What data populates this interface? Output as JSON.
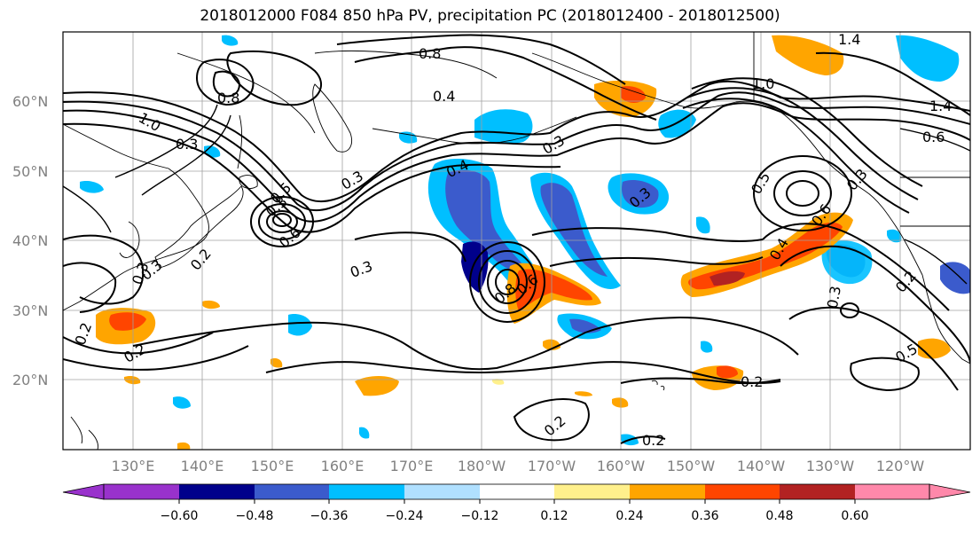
{
  "title": "2018012000 F084 850 hPa PV, precipitation PC (2018012400 - 2018012500)",
  "map": {
    "lat_labels": [
      "60°N",
      "50°N",
      "40°N",
      "30°N",
      "20°N"
    ],
    "lon_labels": [
      "130°E",
      "140°E",
      "150°E",
      "160°E",
      "170°E",
      "180°W",
      "170°W",
      "160°W",
      "150°W",
      "140°W",
      "130°W",
      "120°W"
    ],
    "contour_labels": [
      "0.8",
      "0.4",
      "1.4",
      "1.0",
      "1.4",
      "0.6",
      "0.8",
      "1.0",
      "0.3",
      "0.3",
      "0.4",
      "0.3",
      "0.5",
      "0.3",
      "0.3",
      "0.2",
      "0.3",
      "0.3",
      "0.8",
      "0.6",
      "0.6",
      "0.4",
      "0.5",
      "0.6",
      "0.3",
      "0.2",
      "0.2",
      "0.2",
      "0.2",
      "0.2",
      "0.5",
      "0.3",
      "0.2",
      "0.3"
    ]
  },
  "colorbar": {
    "tick_labels": [
      "−0.60",
      "−0.48",
      "−0.36",
      "−0.24",
      "−0.12",
      "0.12",
      "0.24",
      "0.36",
      "0.48",
      "0.60"
    ],
    "colors": [
      "#9932cc",
      "#00008b",
      "#3b5bcc",
      "#00bfff",
      "#b0e0ff",
      "#ffffff",
      "#fff08c",
      "#ffa500",
      "#ff4500",
      "#b22222",
      "#ff88aa"
    ]
  },
  "colors": {
    "neg_strong": "#00008b",
    "neg_mid": "#3b5bcc",
    "neg_weak": "#00bfff",
    "neg_faint": "#b0e0ff",
    "pos_faint": "#fff08c",
    "pos_weak": "#ffa500",
    "pos_mid": "#ff4500",
    "pos_strong": "#b22222"
  }
}
